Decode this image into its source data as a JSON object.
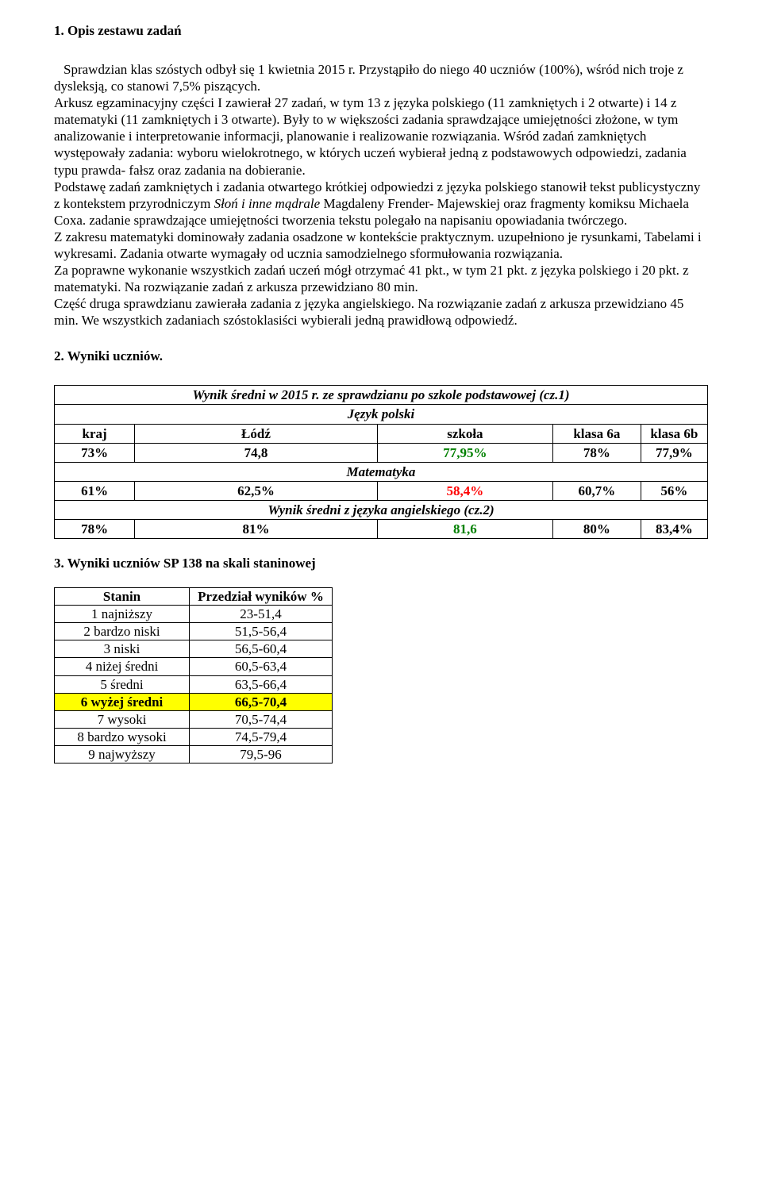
{
  "section1": {
    "number": "1.",
    "title": "Opis zestawu zadań",
    "para": "Sprawdzian klas szóstych odbył się 1 kwietnia 2015 r. Przystąpiło do niego 40 uczniów (100%), wśród nich troje z dysleksją, co stanowi 7,5% piszących.\nArkusz egzaminacyjny części I zawierał 27 zadań, w tym 13 z języka polskiego (11 zamkniętych i 2 otwarte) i 14 z matematyki (11 zamkniętych i 3 otwarte). Były to w większości zadania sprawdzające umiejętności złożone, w tym analizowanie i interpretowanie informacji, planowanie i realizowanie rozwiązania. Wśród zadań zamkniętych występowały zadania: wyboru wielokrotnego, w których uczeń wybierał jedną z podstawowych odpowiedzi, zadania typu prawda- fałsz oraz zadania na dobieranie.\nPodstawę zadań zamkniętych i zadania otwartego krótkiej odpowiedzi z języka polskiego stanowił tekst publicystyczny z kontekstem przyrodniczym ",
    "title_italic": "Słoń i inne mądrale",
    "para2": " Magdaleny Frender- Majewskiej oraz fragmenty komiksu Michaela Coxa. zadanie sprawdzające umiejętności tworzenia tekstu polegało na napisaniu opowiadania twórczego.\nZ zakresu matematyki dominowały zadania osadzone w kontekście praktycznym. uzupełniono je rysunkami, Tabelami i wykresami. Zadania otwarte wymagały od ucznia samodzielnego sformułowania rozwiązania.\nZa poprawne wykonanie wszystkich zadań uczeń mógł otrzymać 41 pkt., w tym 21 pkt. z języka polskiego i 20 pkt. z matematyki. Na rozwiązanie zadań z arkusza przewidziano 80 min.\nCzęść druga sprawdzianu zawierała zadania z języka angielskiego. Na rozwiązanie zadań z arkusza przewidziano 45 min. We wszystkich zadaniach szóstoklasiści wybierali jedną prawidłową odpowiedź."
  },
  "section2": {
    "number": "2.",
    "title": "Wyniki uczniów.",
    "table": {
      "title": "Wynik średni w 2015 r. ze sprawdzianu po szkole podstawowej (cz.1)",
      "subj1": "Język polski",
      "headers": {
        "kraj": "kraj",
        "lodz": "Łódź",
        "szkola": "szkoła",
        "k6a": "klasa 6a",
        "k6b": "klasa 6b"
      },
      "row_polish": {
        "kraj": "73%",
        "lodz": "74,8",
        "szkola": "77,95%",
        "k6a": "78%",
        "k6b": "77,9%"
      },
      "subj2": "Matematyka",
      "row_math": {
        "kraj": "61%",
        "lodz": "62,5%",
        "szkola": "58,4%",
        "k6a": "60,7%",
        "k6b": "56%"
      },
      "subj3": "Wynik średni z języka angielskiego (cz.2)",
      "row_eng": {
        "kraj": "78%",
        "lodz": "81%",
        "szkola": "81,6",
        "k6a": "80%",
        "k6b": "83,4%"
      },
      "colors": {
        "szkola_green": "#008000",
        "szkola_red": "#ff0000"
      }
    }
  },
  "section3": {
    "number": "3.",
    "title": "Wyniki uczniów  SP 138 na skali staninowej",
    "table": {
      "head_a": "Stanin",
      "head_b": "Przedział wyników %",
      "rows": [
        {
          "a": "1 najniższy",
          "b": "23-51,4",
          "hl": false
        },
        {
          "a": "2 bardzo niski",
          "b": "51,5-56,4",
          "hl": false
        },
        {
          "a": "3 niski",
          "b": "56,5-60,4",
          "hl": false
        },
        {
          "a": "4 niżej średni",
          "b": "60,5-63,4",
          "hl": false
        },
        {
          "a": "5 średni",
          "b": "63,5-66,4",
          "hl": false
        },
        {
          "a": "6 wyżej średni",
          "b": "66,5-70,4",
          "hl": true
        },
        {
          "a": "7 wysoki",
          "b": "70,5-74,4",
          "hl": false
        },
        {
          "a": "8 bardzo wysoki",
          "b": "74,5-79,4",
          "hl": false
        },
        {
          "a": "9 najwyższy",
          "b": "79,5-96",
          "hl": false
        }
      ],
      "highlight_bg": "#ffff00"
    }
  }
}
